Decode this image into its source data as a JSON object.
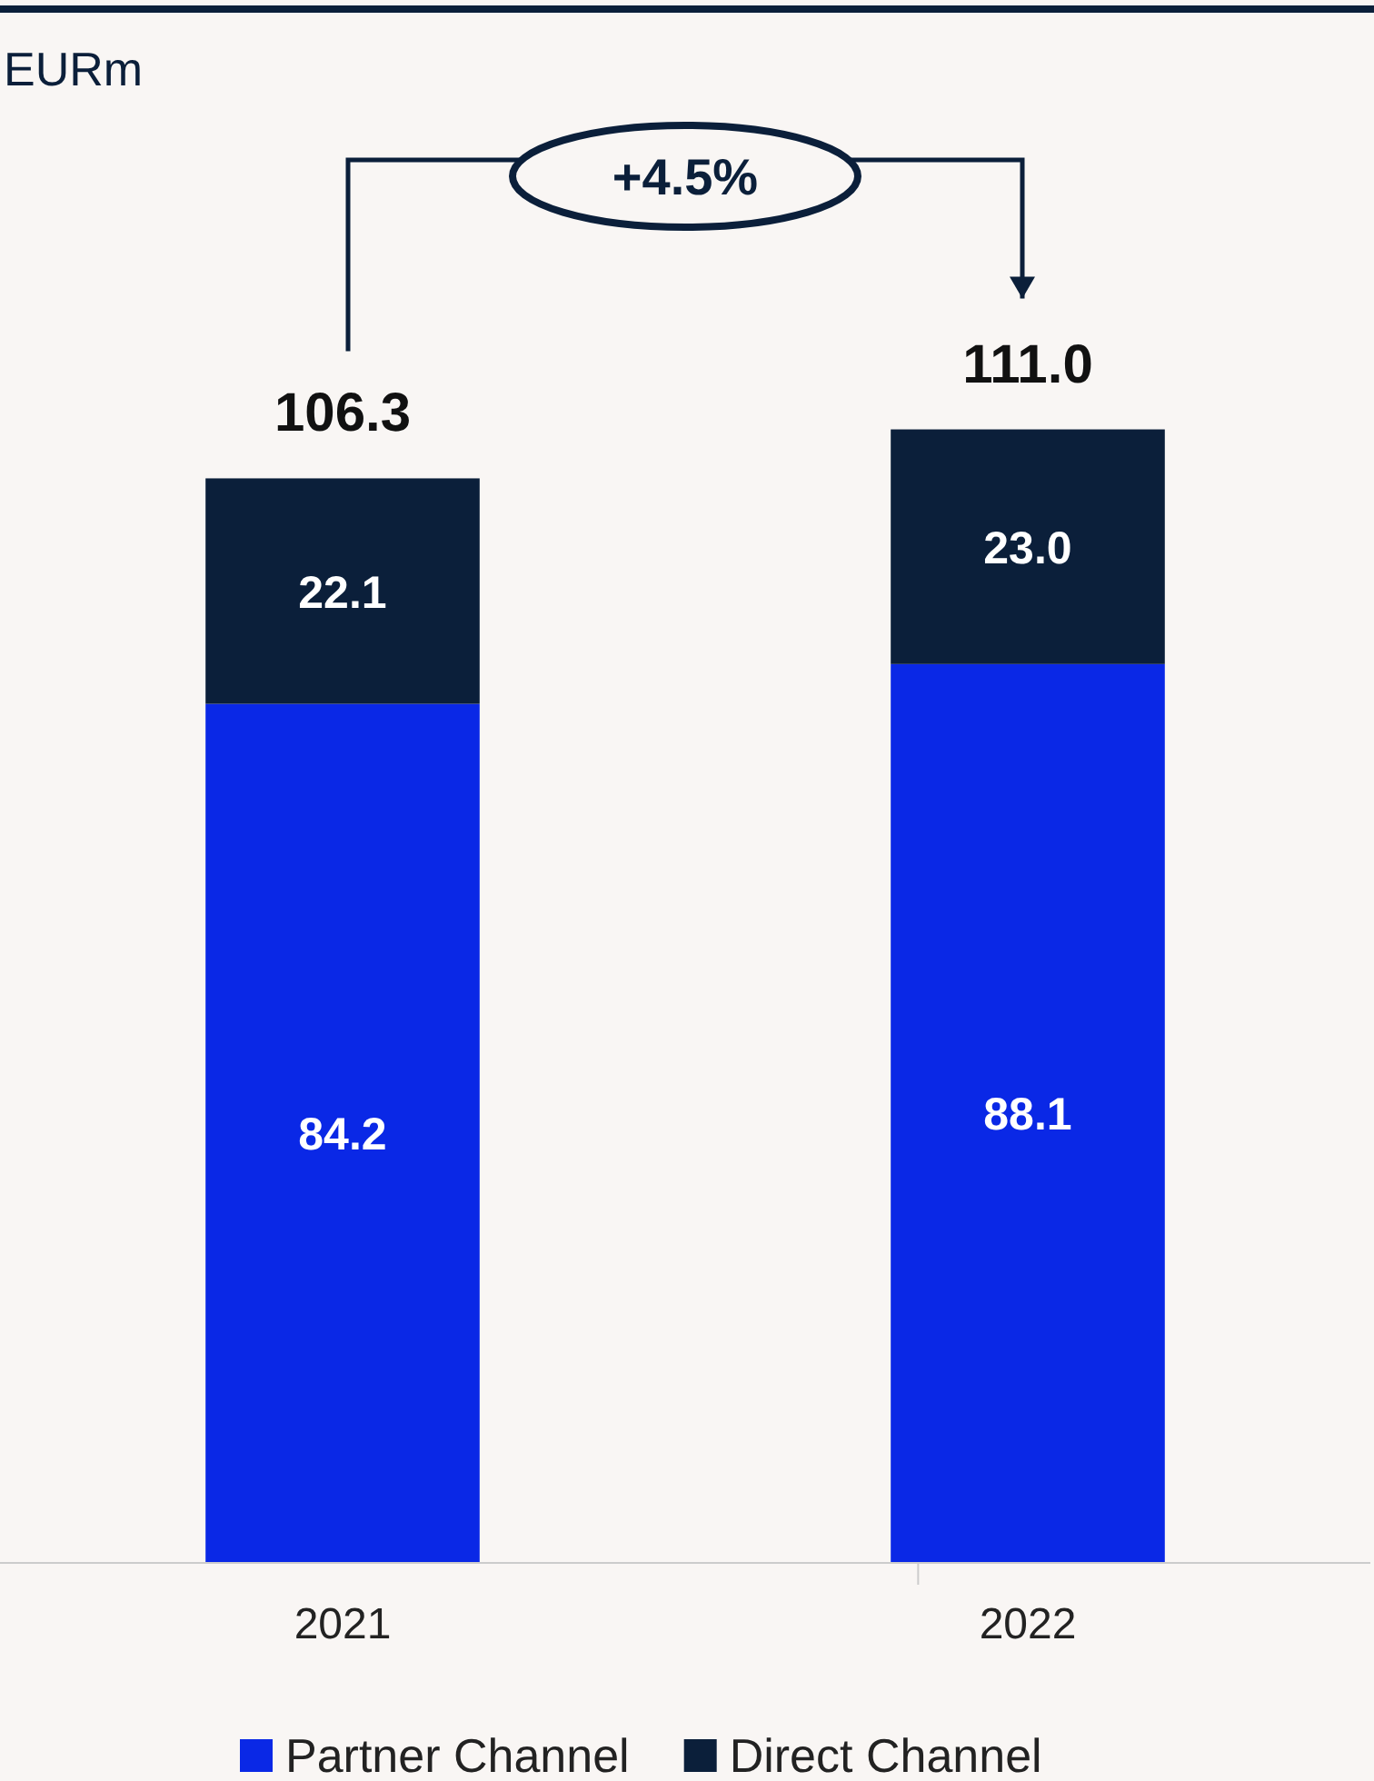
{
  "chart_data": {
    "type": "bar",
    "categories": [
      "2021",
      "2022"
    ],
    "stacked": true,
    "legend": "bottom",
    "totals": [
      "106.3",
      "111.0"
    ],
    "annotations": [
      "EURm",
      "+4.5%"
    ],
    "series": [
      {
        "name": "Partner Channel",
        "color": "#0a28e6",
        "values": [
          84.2,
          88.1
        ],
        "value_labels": [
          "84.2",
          "88.1"
        ]
      },
      {
        "name": "Direct Channel",
        "color": "#0b1f3a",
        "values": [
          22.1,
          23.0
        ],
        "value_labels": [
          "22.1",
          "23.0"
        ]
      }
    ]
  }
}
